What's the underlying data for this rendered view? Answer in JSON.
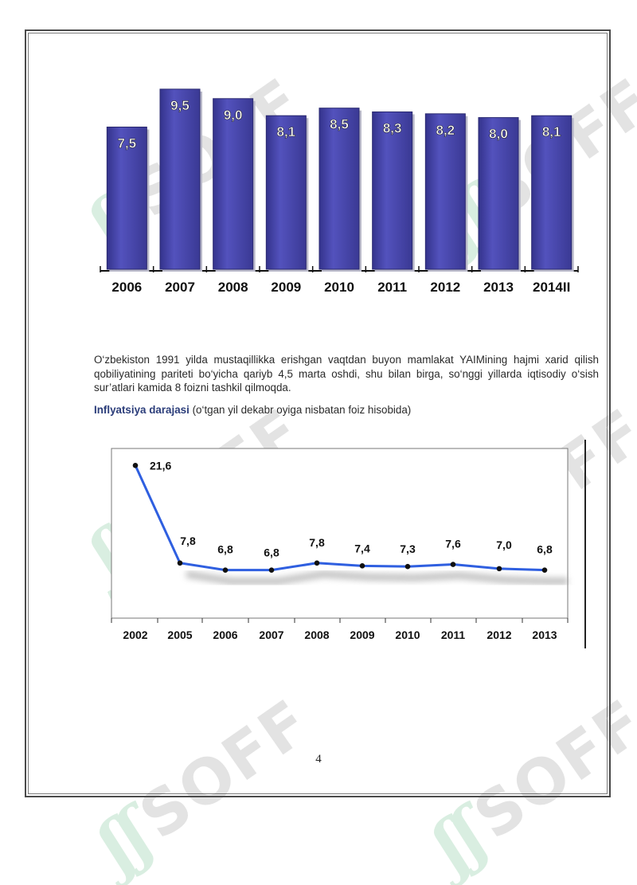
{
  "watermark": {
    "mark": "ʃʃ",
    "text": "SOFF"
  },
  "chart_data": [
    {
      "type": "bar",
      "categories": [
        "2006",
        "2007",
        "2008",
        "2009",
        "2010",
        "2011",
        "2012",
        "2013",
        "2014II"
      ],
      "values": [
        7.5,
        9.5,
        9.0,
        8.1,
        8.5,
        8.3,
        8.2,
        8.0,
        8.1
      ],
      "labels": [
        "7,5",
        "9,5",
        "9,0",
        "8,1",
        "8,5",
        "8,3",
        "8,2",
        "8,0",
        "8,1"
      ],
      "ylim": [
        0,
        10
      ],
      "bar_color": "#4b4ab0",
      "title": "",
      "xlabel": "",
      "ylabel": ""
    },
    {
      "type": "line",
      "categories": [
        "2002",
        "2005",
        "2006",
        "2007",
        "2008",
        "2009",
        "2010",
        "2011",
        "2012",
        "2013"
      ],
      "values": [
        21.6,
        7.8,
        6.8,
        6.8,
        7.8,
        7.4,
        7.3,
        7.6,
        7.0,
        6.8
      ],
      "labels": [
        "21,6",
        "7,8",
        "6,8",
        "6,8",
        "7,8",
        "7,4",
        "7,3",
        "7,6",
        "7,0",
        "6,8"
      ],
      "ylim": [
        0,
        24
      ],
      "line_color": "#2f5fe0",
      "title": "",
      "xlabel": "",
      "ylabel": ""
    }
  ],
  "body": {
    "paragraph": "O‘zbekiston 1991 yilda mustaqillikka erishgan vaqtdan buyon mamlakat YAIMining hajmi xarid qilish qobiliyatining pariteti bo‘yicha qariyb 4,5 marta oshdi, shu bilan birga, so‘nggi yillarda iqtisodiy o‘sish sur’atlari kamida 8 foizni tashkil qilmoqda.",
    "caption_bold": "Inflyatsiya darajasi",
    "caption_rest": " (o‘tgan yil dekabr oyiga nisbatan foiz hisobida)"
  },
  "page_number": "4"
}
